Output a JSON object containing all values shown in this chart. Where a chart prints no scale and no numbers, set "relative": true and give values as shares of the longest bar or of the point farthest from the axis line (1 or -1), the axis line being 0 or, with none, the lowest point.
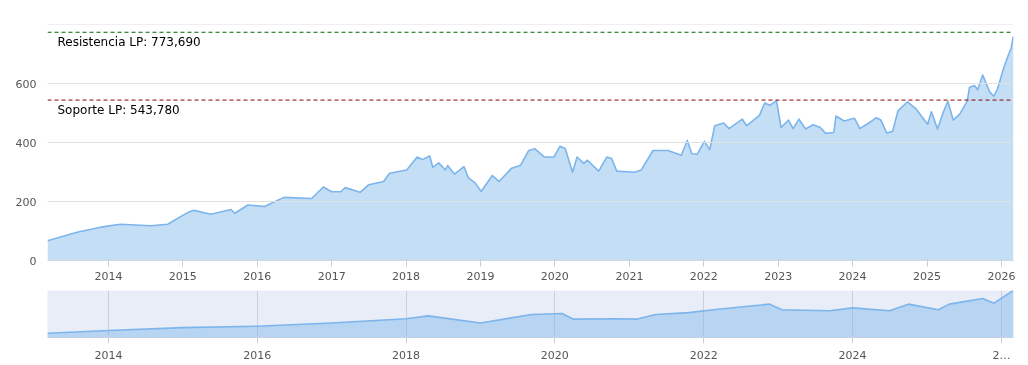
{
  "chart_data": [
    {
      "type": "area",
      "color": "#7cb5ec",
      "grid": "y",
      "line_style": "solid",
      "x": [
        "2013-03-08",
        "2013-07-31",
        "2013-11-24",
        "2014-03-01",
        "2014-07-27",
        "2014-10-19",
        "2015-01-26",
        "2015-02-24",
        "2015-05-19",
        "2015-08-26",
        "2015-09-13",
        "2015-11-17",
        "2016-02-06",
        "2016-05-11",
        "2016-09-24",
        "2016-11-21",
        "2017-01-01",
        "2017-02-14",
        "2017-03-08",
        "2017-05-20",
        "2017-07-02",
        "2017-09-13",
        "2017-10-12",
        "2018-01-04",
        "2018-02-24",
        "2018-03-22",
        "2018-04-27",
        "2018-05-12",
        "2018-06-10",
        "2018-07-13",
        "2018-07-24",
        "2018-08-26",
        "2018-10-12",
        "2018-11-03",
        "2018-12-06",
        "2019-01-04",
        "2019-02-28",
        "2019-04-02",
        "2019-06-03",
        "2019-07-17",
        "2019-08-26",
        "2019-09-24",
        "2019-11-10",
        "2019-12-28",
        "2020-01-26",
        "2020-02-21",
        "2020-03-28",
        "2020-04-19",
        "2020-05-22",
        "2020-06-09",
        "2020-08-03",
        "2020-09-13",
        "2020-10-05",
        "2020-10-31",
        "2021-01-26",
        "2021-02-28",
        "2021-04-27",
        "2021-07-09",
        "2021-09-13",
        "2021-10-12",
        "2021-11-03",
        "2021-11-29",
        "2022-01-04",
        "2022-01-30",
        "2022-02-24",
        "2022-04-09",
        "2022-05-05",
        "2022-07-09",
        "2022-07-31",
        "2022-10-01",
        "2022-10-27",
        "2022-11-21",
        "2022-12-24",
        "2023-01-15",
        "2023-02-21",
        "2023-03-15",
        "2023-04-13",
        "2023-05-16",
        "2023-06-21",
        "2023-07-27",
        "2023-08-22",
        "2023-10-01",
        "2023-10-12",
        "2023-11-21",
        "2024-01-11",
        "2024-02-06",
        "2024-04-05",
        "2024-04-27",
        "2024-05-19",
        "2024-06-17",
        "2024-07-16",
        "2024-08-11",
        "2024-09-27",
        "2024-11-10",
        "2024-12-06",
        "2025-01-04",
        "2025-01-22",
        "2025-02-21",
        "2025-03-22",
        "2025-04-13",
        "2025-05-09",
        "2025-06-10",
        "2025-07-17",
        "2025-07-28",
        "2025-08-22",
        "2025-09-06",
        "2025-10-01",
        "2025-11-03",
        "2025-11-24",
        "2025-12-13",
        "2026-01-11",
        "2026-02-06",
        "2026-02-17",
        "2026-02-28"
      ],
      "values": [
        67,
        96,
        113,
        123,
        118,
        123,
        163,
        170,
        157,
        173,
        160,
        188,
        183,
        214,
        210,
        249,
        233,
        233,
        247,
        231,
        257,
        268,
        296,
        307,
        351,
        342,
        354,
        316,
        331,
        307,
        322,
        293,
        318,
        280,
        263,
        234,
        288,
        268,
        313,
        323,
        373,
        379,
        351,
        351,
        387,
        380,
        299,
        351,
        329,
        340,
        303,
        351,
        346,
        303,
        299,
        307,
        373,
        373,
        357,
        407,
        362,
        360,
        404,
        376,
        457,
        466,
        447,
        479,
        457,
        492,
        534,
        526,
        542,
        451,
        476,
        447,
        479,
        446,
        460,
        451,
        431,
        434,
        490,
        473,
        482,
        447,
        473,
        484,
        476,
        432,
        438,
        507,
        538,
        512,
        487,
        462,
        504,
        446,
        504,
        540,
        476,
        496,
        540,
        587,
        593,
        579,
        629,
        573,
        557,
        582,
        651,
        701,
        718,
        760
      ],
      "xlim": [
        "2013-03-08",
        "2026-03-01"
      ],
      "ylim": [
        0,
        800
      ],
      "xticks": [
        "2014",
        "2015",
        "2016",
        "2017",
        "2018",
        "2019",
        "2020",
        "2021",
        "2022",
        "2023",
        "2024",
        "2025",
        "2026"
      ],
      "yticks": [
        0,
        200,
        400,
        600,
        {
          "value": 800,
          "label": null
        }
      ],
      "ref_lines": [
        {
          "axis": "y",
          "value": 773.69,
          "label": "Resistencia LP: 773,690",
          "color": "#006400",
          "line_style": "dashed"
        },
        {
          "axis": "y",
          "value": 543.78,
          "label": "Soporte LP: 543,780",
          "color": "#8b0000",
          "line_style": "dashed"
        }
      ]
    },
    {
      "type": "area",
      "relative": true,
      "color": "#7cb5ec",
      "grid": "x",
      "x": [
        "2013-03-08",
        "2014-01-01",
        "2015-01-01",
        "2016-01-01",
        "2017-01-01",
        "2018-01-01",
        "2018-04-20",
        "2019-01-01",
        "2019-09-10",
        "2020-02-05",
        "2020-04-01",
        "2020-10-20",
        "2021-02-05",
        "2021-05-10",
        "2021-10-20",
        "2022-03-10",
        "2022-11-20",
        "2023-01-20",
        "2023-09-10",
        "2024-01-01",
        "2024-07-01",
        "2024-10-01",
        "2025-02-25",
        "2025-04-20",
        "2025-10-01",
        "2025-11-25",
        "2026-02-28"
      ],
      "values": [
        0.09,
        0.15,
        0.21,
        0.24,
        0.31,
        0.4,
        0.46,
        0.31,
        0.49,
        0.51,
        0.39,
        0.4,
        0.39,
        0.49,
        0.53,
        0.6,
        0.71,
        0.59,
        0.57,
        0.63,
        0.57,
        0.71,
        0.59,
        0.71,
        0.83,
        0.73,
        1
      ],
      "xlim": [
        "2013-03-08",
        "2026-03-01"
      ],
      "xticks": [
        "2014",
        "2016",
        "2018",
        "2020",
        "2022",
        "2024",
        {
          "value": "2026",
          "label": "2…"
        }
      ]
    }
  ]
}
